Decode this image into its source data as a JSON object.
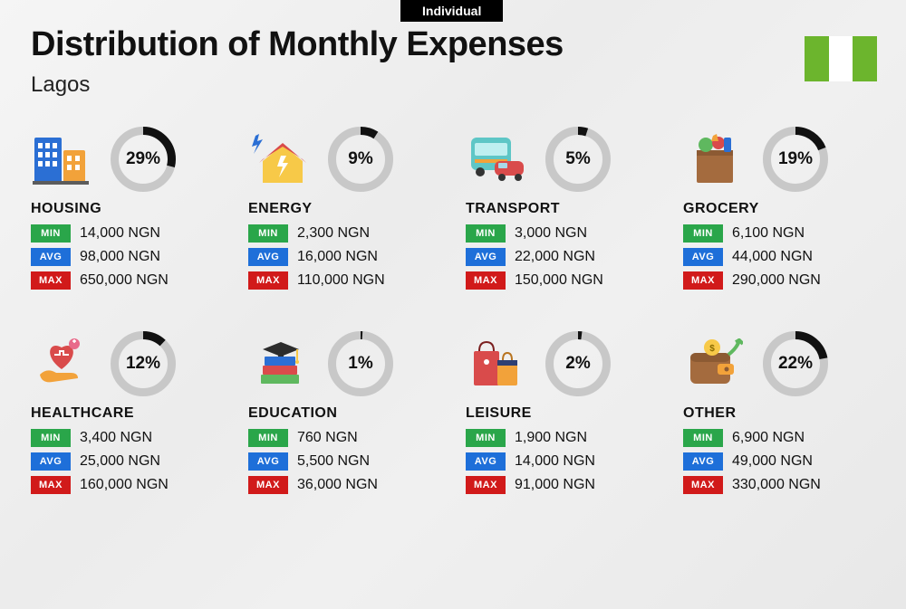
{
  "top_tab": "Individual",
  "title": "Distribution of Monthly Expenses",
  "subtitle": "Lagos",
  "flag_colors": {
    "green": "#6cb52d",
    "white": "#ffffff"
  },
  "donut": {
    "size": 72,
    "stroke_width": 9,
    "bg_color": "#c8c8c8",
    "fg_color": "#111111"
  },
  "badges": {
    "min": {
      "label": "MIN",
      "color": "#2aa64a"
    },
    "avg": {
      "label": "AVG",
      "color": "#1e6fd9"
    },
    "max": {
      "label": "MAX",
      "color": "#d11a1a"
    }
  },
  "currency_suffix": " NGN",
  "categories": [
    {
      "id": "housing",
      "name": "HOUSING",
      "percent": 29,
      "min": "14,000",
      "avg": "98,000",
      "max": "650,000",
      "icon": "buildings"
    },
    {
      "id": "energy",
      "name": "ENERGY",
      "percent": 9,
      "min": "2,300",
      "avg": "16,000",
      "max": "110,000",
      "icon": "house-bolt"
    },
    {
      "id": "transport",
      "name": "TRANSPORT",
      "percent": 5,
      "min": "3,000",
      "avg": "22,000",
      "max": "150,000",
      "icon": "bus-car"
    },
    {
      "id": "grocery",
      "name": "GROCERY",
      "percent": 19,
      "min": "6,100",
      "avg": "44,000",
      "max": "290,000",
      "icon": "grocery-bag"
    },
    {
      "id": "healthcare",
      "name": "HEALTHCARE",
      "percent": 12,
      "min": "3,400",
      "avg": "25,000",
      "max": "160,000",
      "icon": "heart-hand"
    },
    {
      "id": "education",
      "name": "EDUCATION",
      "percent": 1,
      "min": "760",
      "avg": "5,500",
      "max": "36,000",
      "icon": "grad-books"
    },
    {
      "id": "leisure",
      "name": "LEISURE",
      "percent": 2,
      "min": "1,900",
      "avg": "14,000",
      "max": "91,000",
      "icon": "shopping-bags"
    },
    {
      "id": "other",
      "name": "OTHER",
      "percent": 22,
      "min": "6,900",
      "avg": "49,000",
      "max": "330,000",
      "icon": "wallet-arrow"
    }
  ],
  "icon_palette": {
    "blue": "#2b6fd4",
    "orange": "#f2a23a",
    "yellow": "#f7c948",
    "red": "#d94b4b",
    "green": "#5fb85f",
    "teal": "#5ec6c6",
    "brown": "#a46b3e",
    "navy": "#2e3f73",
    "pink": "#e86a8a"
  }
}
